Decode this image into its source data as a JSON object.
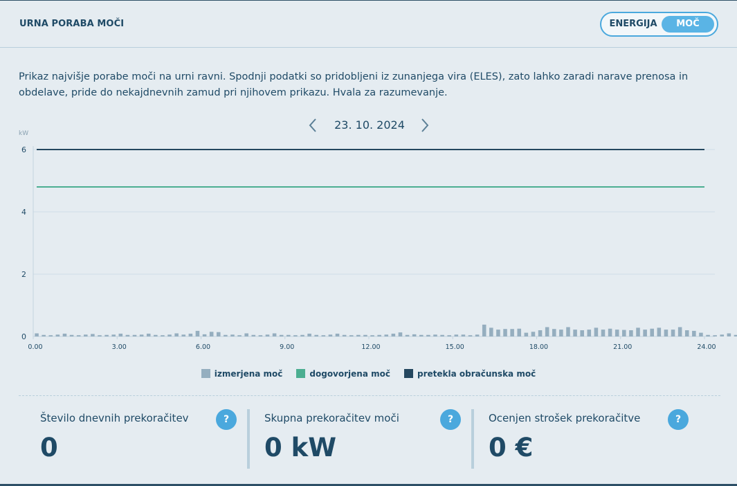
{
  "header": {
    "title": "URNA PORABA MOČI",
    "toggle": {
      "energy_label": "ENERGIJA",
      "power_label": "MOČ",
      "selected": "MOČ"
    }
  },
  "intro_text": "Prikaz najvišje porabe moči na urni ravni. Spodnji podatki so pridobljeni iz zunanjega vira (ELES), zato lahko zaradi narave prenosa in obdelave, pride do nekajdnevnih zamud pri njihovem prikazu. Hvala za razumevanje.",
  "date_nav": {
    "date": "23. 10. 2024"
  },
  "colors": {
    "measured": "#95aebf",
    "contracted": "#4bae91",
    "exceeded": "#24475f",
    "accent": "#4aa8dd"
  },
  "chart_data": {
    "type": "bar",
    "ylabel": "kW",
    "ylim": [
      0,
      6
    ],
    "yticks": [
      0,
      2,
      4,
      6
    ],
    "xlim": [
      0,
      24
    ],
    "xticks": [
      "0.00",
      "3.00",
      "6.00",
      "9.00",
      "12.00",
      "15.00",
      "18.00",
      "21.00",
      "24.00"
    ],
    "legend_position": "bottom",
    "series": [
      {
        "name": "izmerjena moč",
        "type": "bar",
        "interval_minutes": 15,
        "values": [
          0.1,
          0.05,
          0.04,
          0.06,
          0.09,
          0.05,
          0.04,
          0.06,
          0.08,
          0.04,
          0.05,
          0.06,
          0.09,
          0.05,
          0.05,
          0.06,
          0.09,
          0.05,
          0.04,
          0.06,
          0.1,
          0.06,
          0.09,
          0.18,
          0.07,
          0.15,
          0.14,
          0.05,
          0.06,
          0.04,
          0.1,
          0.05,
          0.04,
          0.06,
          0.1,
          0.05,
          0.05,
          0.04,
          0.05,
          0.09,
          0.05,
          0.04,
          0.06,
          0.09,
          0.05,
          0.04,
          0.05,
          0.05,
          0.04,
          0.05,
          0.06,
          0.09,
          0.13,
          0.05,
          0.07,
          0.05,
          0.05,
          0.06,
          0.05,
          0.04,
          0.06,
          0.06,
          0.04,
          0.06,
          0.38,
          0.28,
          0.22,
          0.24,
          0.24,
          0.25,
          0.12,
          0.15,
          0.2,
          0.3,
          0.24,
          0.22,
          0.3,
          0.22,
          0.2,
          0.22,
          0.28,
          0.22,
          0.25,
          0.22,
          0.21,
          0.2,
          0.28,
          0.22,
          0.25,
          0.28,
          0.22,
          0.22,
          0.3,
          0.2,
          0.18,
          0.12,
          0.05,
          0.04,
          0.06,
          0.1,
          0.05,
          0.04,
          0.06,
          0.1,
          0.05
        ]
      },
      {
        "name": "dogovorjena moč",
        "type": "line",
        "value": 4.8
      },
      {
        "name": "pretekla obračunska moč",
        "type": "line",
        "value": 6.0
      }
    ]
  },
  "stats": [
    {
      "label": "Število dnevnih prekoračitev",
      "value": "0",
      "help": "?"
    },
    {
      "label": "Skupna prekoračitev moči",
      "value": "0 kW",
      "help": "?"
    },
    {
      "label": "Ocenjen strošek prekoračitve",
      "value": "0 €",
      "help": "?"
    }
  ]
}
